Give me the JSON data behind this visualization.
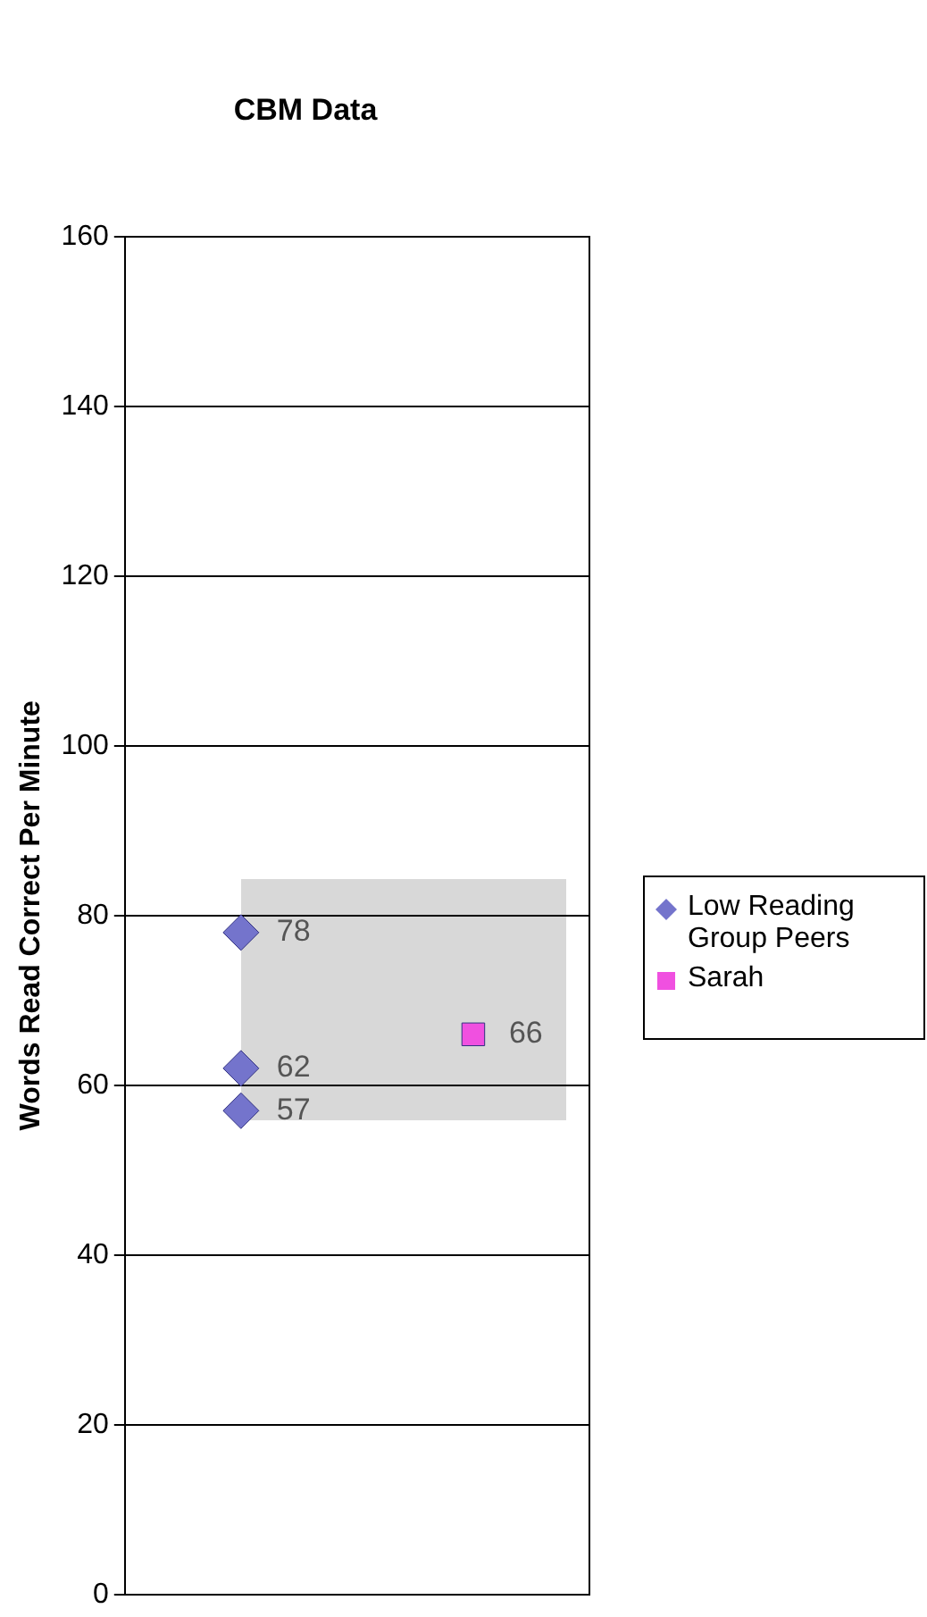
{
  "chart_data": {
    "type": "scatter",
    "title": "CBM Data",
    "ylabel": "Words Read Correct Per Minute",
    "categories": [
      null,
      null
    ],
    "ylim": [
      0,
      160
    ],
    "yticks": [
      0,
      20,
      40,
      60,
      80,
      100,
      120,
      140,
      160
    ],
    "tick_labels": "y",
    "grid": "y",
    "legend": "right",
    "data_labels": true,
    "series": [
      {
        "name": "Low Reading Group Peers",
        "color": "#7474cc",
        "marker": "diamond",
        "values": [
          78,
          null
        ]
      },
      {
        "color": "#7474cc",
        "marker": "diamond",
        "values": [
          62,
          null
        ]
      },
      {
        "color": "#7474cc",
        "marker": "diamond",
        "values": [
          57,
          null
        ]
      },
      {
        "name": "Sarah",
        "color": "#f050e0",
        "marker": "square",
        "values": [
          null,
          66
        ]
      }
    ]
  }
}
